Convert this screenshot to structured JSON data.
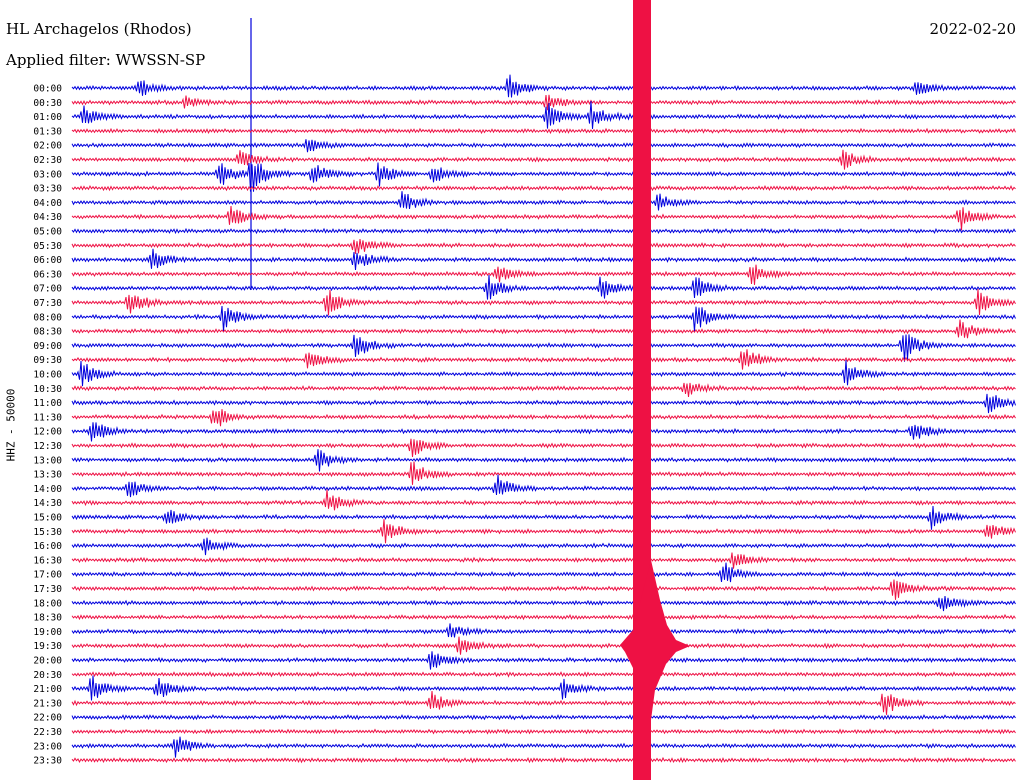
{
  "header": {
    "station": "HL Archagelos (Rhodos)",
    "filter": "Applied filter: WWSSN-SP",
    "date": "2022-02-20"
  },
  "chart_data": {
    "type": "line",
    "title": "HL Archagelos (Rhodos)",
    "ylabel": "HHZ - 50000",
    "trace_labels": [
      "00:00",
      "00:30",
      "01:00",
      "01:30",
      "02:00",
      "02:30",
      "03:00",
      "03:30",
      "04:00",
      "04:30",
      "05:00",
      "05:30",
      "06:00",
      "06:30",
      "07:00",
      "07:30",
      "08:00",
      "08:30",
      "09:00",
      "09:30",
      "10:00",
      "10:30",
      "11:00",
      "11:30",
      "12:00",
      "12:30",
      "13:00",
      "13:30",
      "14:00",
      "14:30",
      "15:00",
      "15:30",
      "16:00",
      "16:30",
      "17:00",
      "17:30",
      "18:00",
      "18:30",
      "19:00",
      "19:30",
      "20:00",
      "20:30",
      "21:00",
      "21:30",
      "22:00",
      "22:30",
      "23:00",
      "23:30"
    ],
    "trace_colors": [
      "#0000dd",
      "#ee1144"
    ],
    "grid": false,
    "large_event": {
      "trace_label": "19:30",
      "color": "#ee1144"
    },
    "events": [
      {
        "t": "00:00",
        "x": 0.07,
        "amp": 10
      },
      {
        "t": "00:00",
        "x": 0.462,
        "amp": 14
      },
      {
        "t": "00:00",
        "x": 0.895,
        "amp": 9
      },
      {
        "t": "00:30",
        "x": 0.12,
        "amp": 7
      },
      {
        "t": "00:30",
        "x": 0.503,
        "amp": 9
      },
      {
        "t": "01:00",
        "x": 0.012,
        "amp": 12
      },
      {
        "t": "01:00",
        "x": 0.503,
        "amp": 15
      },
      {
        "t": "01:00",
        "x": 0.55,
        "amp": 15
      },
      {
        "t": "02:00",
        "x": 0.249,
        "amp": 8
      },
      {
        "t": "02:30",
        "x": 0.177,
        "amp": 10
      },
      {
        "t": "02:30",
        "x": 0.816,
        "amp": 11
      },
      {
        "t": "03:00",
        "x": 0.156,
        "amp": 14
      },
      {
        "t": "03:00",
        "x": 0.19,
        "amp": 20
      },
      {
        "t": "03:00",
        "x": 0.255,
        "amp": 14
      },
      {
        "t": "03:00",
        "x": 0.325,
        "amp": 14
      },
      {
        "t": "03:00",
        "x": 0.382,
        "amp": 10
      },
      {
        "t": "04:00",
        "x": 0.35,
        "amp": 12
      },
      {
        "t": "04:00",
        "x": 0.62,
        "amp": 9
      },
      {
        "t": "04:30",
        "x": 0.168,
        "amp": 11
      },
      {
        "t": "04:30",
        "x": 0.94,
        "amp": 14
      },
      {
        "t": "05:30",
        "x": 0.3,
        "amp": 10
      },
      {
        "t": "06:00",
        "x": 0.085,
        "amp": 12
      },
      {
        "t": "06:00",
        "x": 0.3,
        "amp": 12
      },
      {
        "t": "06:30",
        "x": 0.45,
        "amp": 10
      },
      {
        "t": "06:30",
        "x": 0.72,
        "amp": 12
      },
      {
        "t": "07:00",
        "x": 0.44,
        "amp": 14
      },
      {
        "t": "07:00",
        "x": 0.56,
        "amp": 12
      },
      {
        "t": "07:00",
        "x": 0.66,
        "amp": 14
      },
      {
        "t": "07:30",
        "x": 0.06,
        "amp": 16
      },
      {
        "t": "07:30",
        "x": 0.27,
        "amp": 14
      },
      {
        "t": "07:30",
        "x": 0.96,
        "amp": 14
      },
      {
        "t": "08:00",
        "x": 0.16,
        "amp": 14
      },
      {
        "t": "08:00",
        "x": 0.66,
        "amp": 16
      },
      {
        "t": "08:30",
        "x": 0.94,
        "amp": 12
      },
      {
        "t": "09:00",
        "x": 0.3,
        "amp": 14
      },
      {
        "t": "09:00",
        "x": 0.88,
        "amp": 20
      },
      {
        "t": "09:30",
        "x": 0.25,
        "amp": 12
      },
      {
        "t": "09:30",
        "x": 0.71,
        "amp": 16
      },
      {
        "t": "10:00",
        "x": 0.01,
        "amp": 14
      },
      {
        "t": "10:00",
        "x": 0.82,
        "amp": 14
      },
      {
        "t": "10:30",
        "x": 0.65,
        "amp": 10
      },
      {
        "t": "11:00",
        "x": 0.97,
        "amp": 12
      },
      {
        "t": "11:30",
        "x": 0.15,
        "amp": 14
      },
      {
        "t": "12:00",
        "x": 0.02,
        "amp": 14
      },
      {
        "t": "12:00",
        "x": 0.89,
        "amp": 12
      },
      {
        "t": "12:30",
        "x": 0.36,
        "amp": 14
      },
      {
        "t": "13:00",
        "x": 0.26,
        "amp": 12
      },
      {
        "t": "13:30",
        "x": 0.36,
        "amp": 14
      },
      {
        "t": "14:00",
        "x": 0.06,
        "amp": 12
      },
      {
        "t": "14:00",
        "x": 0.45,
        "amp": 14
      },
      {
        "t": "14:30",
        "x": 0.27,
        "amp": 12
      },
      {
        "t": "15:00",
        "x": 0.1,
        "amp": 10
      },
      {
        "t": "15:00",
        "x": 0.91,
        "amp": 12
      },
      {
        "t": "15:30",
        "x": 0.33,
        "amp": 14
      },
      {
        "t": "15:30",
        "x": 0.97,
        "amp": 10
      },
      {
        "t": "16:00",
        "x": 0.14,
        "amp": 10
      },
      {
        "t": "16:30",
        "x": 0.7,
        "amp": 10
      },
      {
        "t": "17:00",
        "x": 0.69,
        "amp": 12
      },
      {
        "t": "17:30",
        "x": 0.87,
        "amp": 12
      },
      {
        "t": "18:00",
        "x": 0.92,
        "amp": 10
      },
      {
        "t": "19:00",
        "x": 0.4,
        "amp": 8
      },
      {
        "t": "19:30",
        "x": 0.41,
        "amp": 10
      },
      {
        "t": "20:00",
        "x": 0.38,
        "amp": 12
      },
      {
        "t": "21:00",
        "x": 0.02,
        "amp": 14
      },
      {
        "t": "21:00",
        "x": 0.09,
        "amp": 12
      },
      {
        "t": "21:00",
        "x": 0.52,
        "amp": 12
      },
      {
        "t": "21:30",
        "x": 0.38,
        "amp": 12
      },
      {
        "t": "21:30",
        "x": 0.86,
        "amp": 14
      },
      {
        "t": "23:00",
        "x": 0.11,
        "amp": 12
      }
    ]
  }
}
